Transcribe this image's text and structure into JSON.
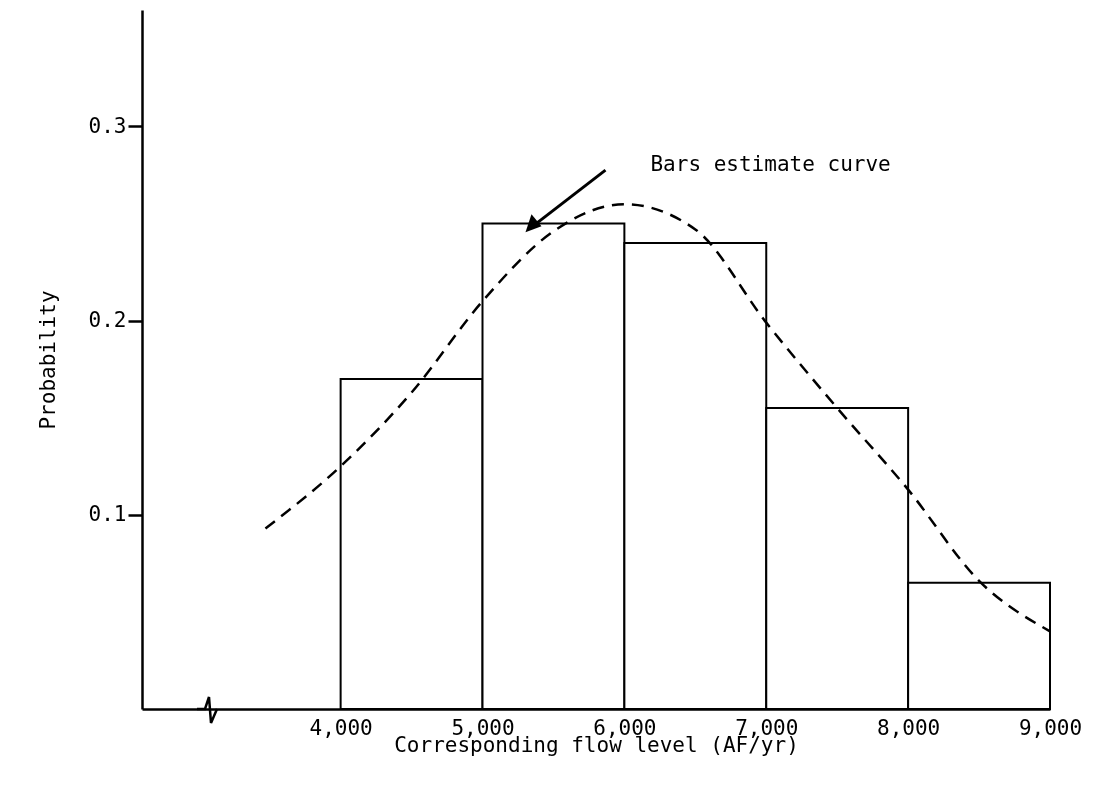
{
  "chart_data": {
    "type": "histogram",
    "xlabel": "Corresponding flow level (AF/yr)",
    "ylabel": "Probability",
    "bins": [
      4000,
      5000,
      6000,
      7000,
      8000,
      9000
    ],
    "values": [
      0.17,
      0.25,
      0.24,
      0.155,
      0.065
    ],
    "color": "#000000",
    "series": [
      {
        "type": "line",
        "line_style": "dashed",
        "color": "#000000",
        "x": [
          3470,
          4000,
          4500,
          5000,
          5500,
          6000,
          6500,
          7000,
          7500,
          8000,
          8500,
          9000
        ],
        "values": [
          0.093,
          0.125,
          0.163,
          0.21,
          0.246,
          0.26,
          0.247,
          0.199,
          0.155,
          0.113,
          0.066,
          0.04
        ]
      }
    ],
    "annotations": [
      "Bars estimate curve"
    ],
    "xlim": [
      2600,
      9000
    ],
    "ylim": [
      0,
      0.36
    ],
    "xticks": [
      {
        "value": 4000,
        "label": "4,000"
      },
      {
        "value": 5000,
        "label": "5,000"
      },
      {
        "value": 6000,
        "label": "6,000"
      },
      {
        "value": 7000,
        "label": "7,000"
      },
      {
        "value": 8000,
        "label": "8,000"
      },
      {
        "value": 9000,
        "label": "9,000"
      }
    ],
    "yticks": [
      0.1,
      0.2,
      0.3
    ],
    "grid": false
  }
}
